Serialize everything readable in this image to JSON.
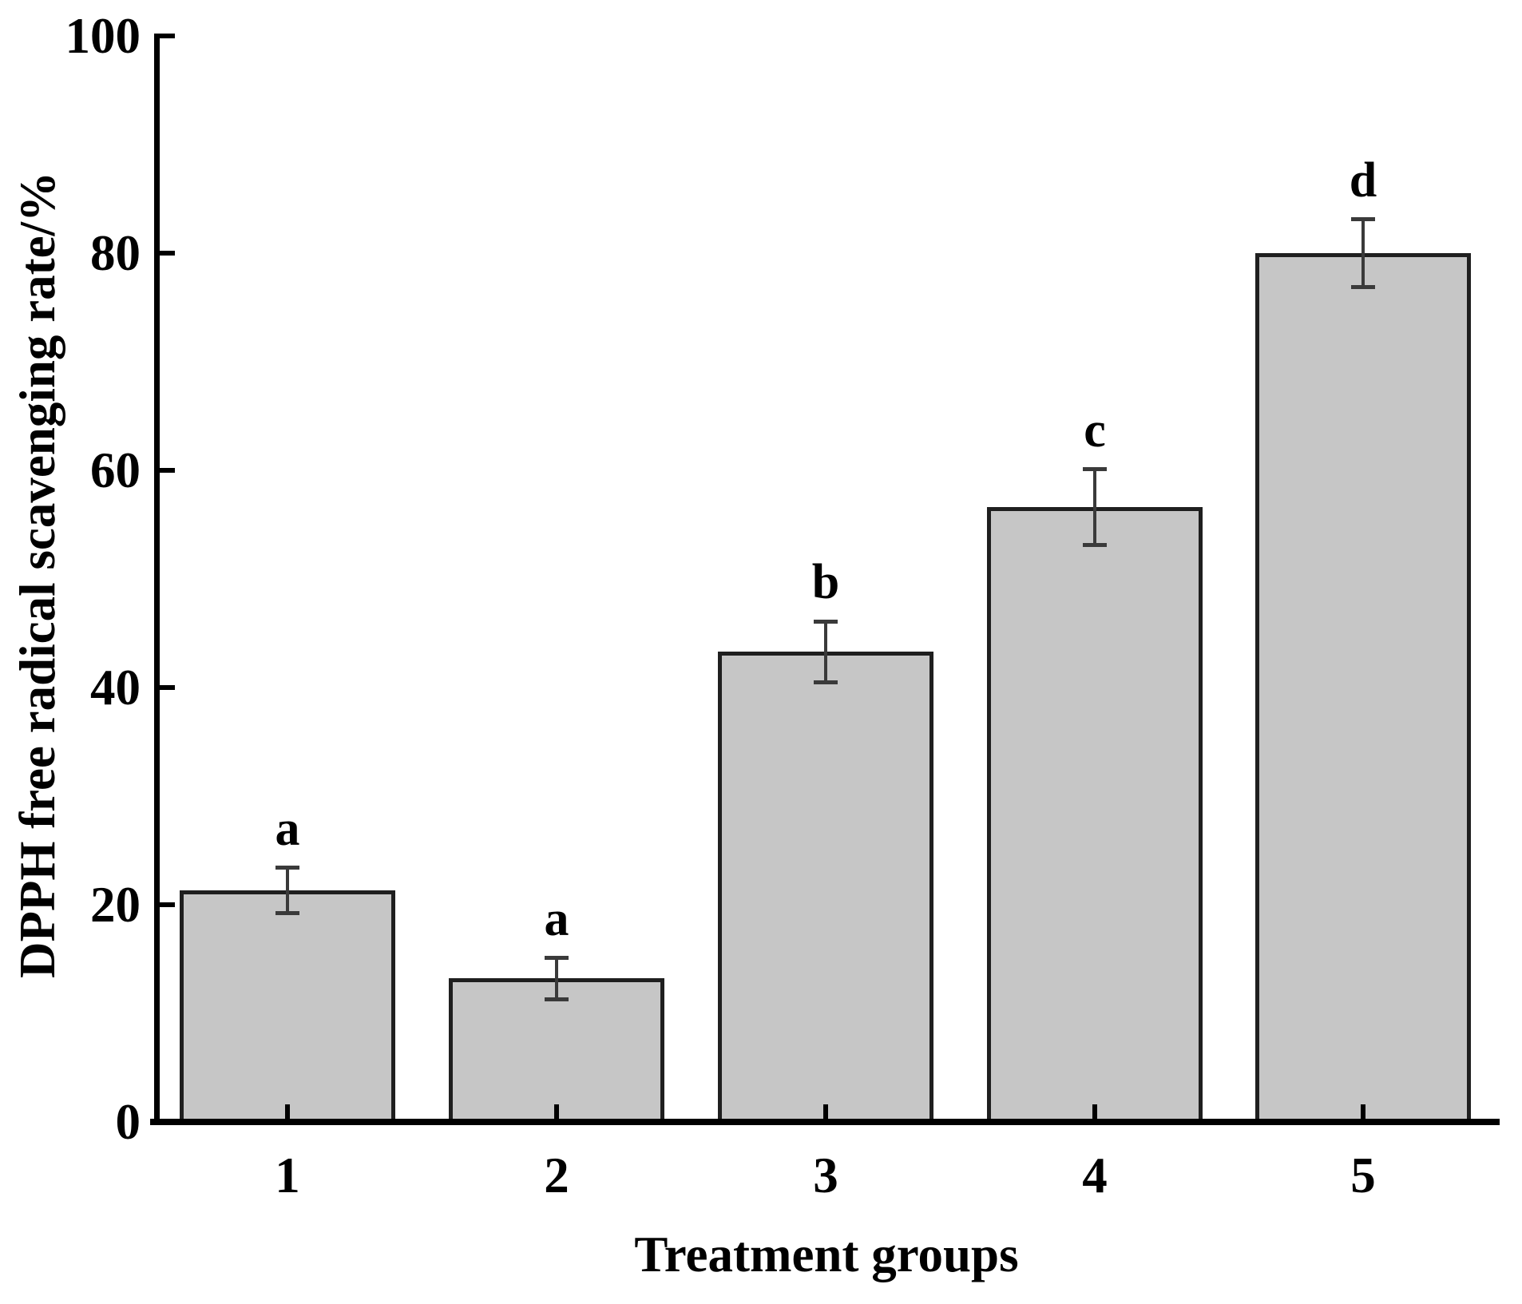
{
  "chart_data": {
    "type": "bar",
    "title": "",
    "xlabel": "Treatment groups",
    "ylabel": "DPPH free radical scavenging rate/%",
    "categories": [
      "1",
      "2",
      "3",
      "4",
      "5"
    ],
    "values": [
      21.3,
      13.2,
      43.3,
      56.6,
      80.0
    ],
    "errors": [
      2.1,
      1.9,
      2.8,
      3.5,
      3.1
    ],
    "sig_letters": [
      "a",
      "a",
      "b",
      "c",
      "d"
    ],
    "ylim": [
      0,
      100
    ],
    "yticks": [
      0,
      20,
      40,
      60,
      80,
      100
    ],
    "grid": false,
    "legend": null,
    "colors": {
      "bar_fill": "#c6c6c6",
      "bar_border": "#1f1f1f",
      "error_bar": "#3a3a3a",
      "axis": "#000000",
      "text": "#000000"
    }
  }
}
